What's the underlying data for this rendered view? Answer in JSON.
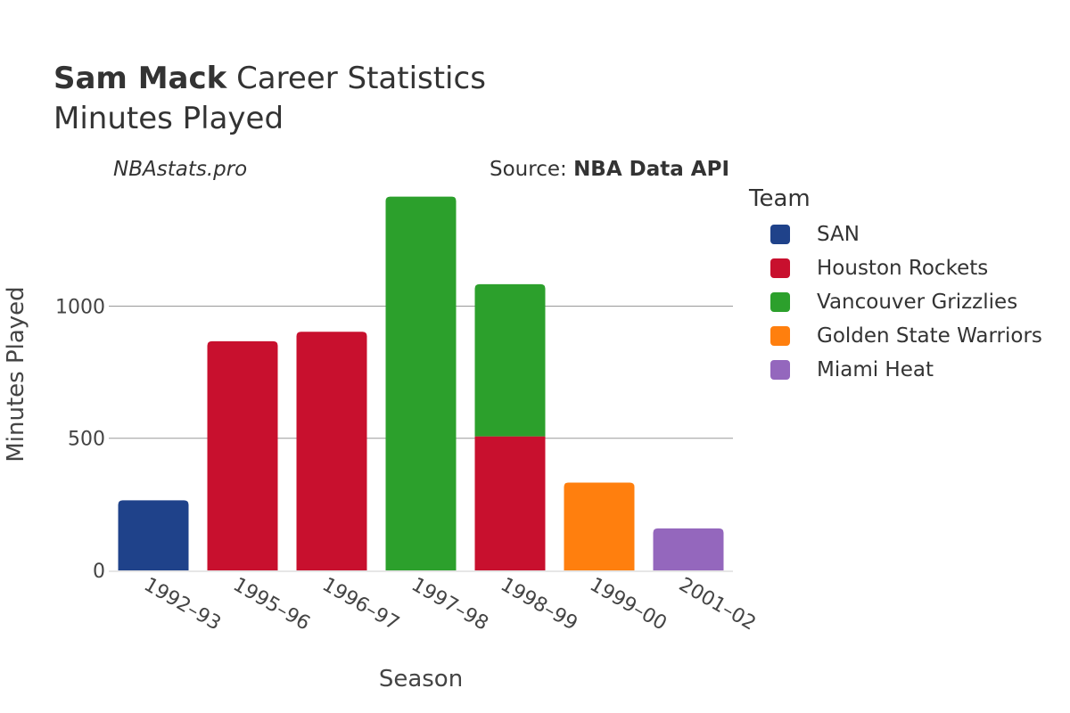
{
  "header": {
    "name": "Sam Mack",
    "title_rest": "Career Statistics",
    "subtitle": "Minutes Played",
    "site": "NBAstats.pro",
    "source_prefix": "Source: ",
    "source_name": "NBA Data API"
  },
  "legend": {
    "title": "Team",
    "items": [
      {
        "name": "SAN",
        "color": "#1f428a"
      },
      {
        "name": "Houston Rockets",
        "color": "#c8102e"
      },
      {
        "name": "Vancouver Grizzlies",
        "color": "#2ca02c"
      },
      {
        "name": "Golden State Warriors",
        "color": "#ff7f0e"
      },
      {
        "name": "Miami Heat",
        "color": "#9467bd"
      }
    ]
  },
  "chart_data": {
    "type": "bar",
    "stacked": true,
    "xlabel": "Season",
    "ylabel": "Minutes Played",
    "ylim": [
      0,
      1450
    ],
    "yticks": [
      0,
      500,
      1000
    ],
    "categories": [
      "1992–93",
      "1995–96",
      "1996–97",
      "1997–98",
      "1998–99",
      "1999–00",
      "2001–02"
    ],
    "series": [
      {
        "name": "SAN",
        "color": "#1f428a",
        "values": [
          265,
          0,
          0,
          0,
          0,
          0,
          0
        ]
      },
      {
        "name": "Houston Rockets",
        "color": "#c8102e",
        "values": [
          0,
          867,
          903,
          0,
          507,
          0,
          0
        ]
      },
      {
        "name": "Vancouver Grizzlies",
        "color": "#2ca02c",
        "values": [
          0,
          0,
          0,
          1414,
          576,
          0,
          0
        ]
      },
      {
        "name": "Golden State Warriors",
        "color": "#ff7f0e",
        "values": [
          0,
          0,
          0,
          0,
          0,
          332,
          0
        ]
      },
      {
        "name": "Miami Heat",
        "color": "#9467bd",
        "values": [
          0,
          0,
          0,
          0,
          0,
          0,
          159
        ]
      }
    ],
    "grid": true,
    "legend_position": "right"
  }
}
